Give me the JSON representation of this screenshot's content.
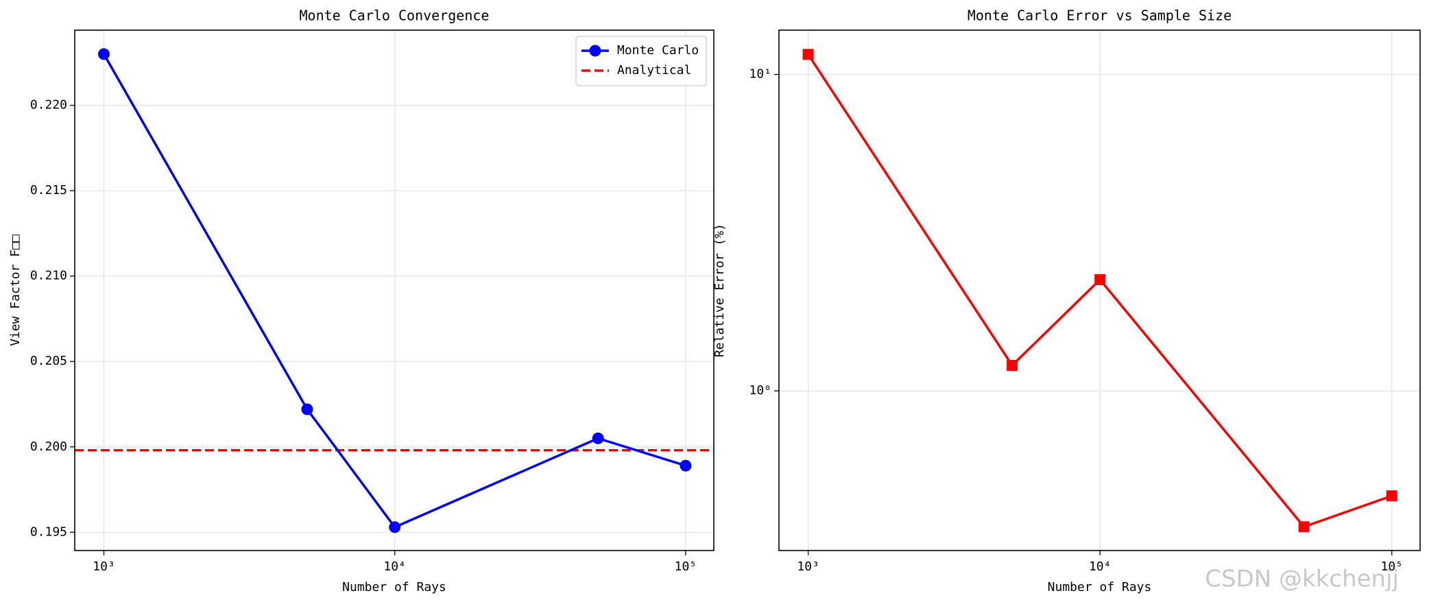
{
  "chart_data": [
    {
      "type": "line",
      "title": "Monte Carlo Convergence",
      "xlabel": "Number of Rays",
      "ylabel": "View Factor F□□",
      "xscale": "log",
      "yscale": "linear",
      "grid": true,
      "legend": "upper right",
      "x": [
        1000,
        5000,
        10000,
        50000,
        100000
      ],
      "series": [
        {
          "name": "Monte Carlo",
          "color": "#0000ff",
          "marker": "circle",
          "values": [
            0.223,
            0.2022,
            0.1953,
            0.2005,
            0.1989
          ]
        }
      ],
      "reference_lines": [
        {
          "name": "Analytical",
          "color": "#ff0000",
          "style": "dashed",
          "value": 0.1998
        }
      ],
      "xlim": [
        794,
        125000
      ],
      "xticks": [
        {
          "value": 1000,
          "label": "10³"
        },
        {
          "value": 10000,
          "label": "10⁴"
        },
        {
          "value": 100000,
          "label": "10⁵"
        }
      ],
      "ylim": [
        0.19393,
        0.2244
      ],
      "yticks": [
        {
          "value": 0.195,
          "label": "0.195"
        },
        {
          "value": 0.2,
          "label": "0.200"
        },
        {
          "value": 0.205,
          "label": "0.205"
        },
        {
          "value": 0.21,
          "label": "0.210"
        },
        {
          "value": 0.215,
          "label": "0.215"
        },
        {
          "value": 0.22,
          "label": "0.220"
        }
      ]
    },
    {
      "type": "line",
      "title": "Monte Carlo Error vs Sample Size",
      "xlabel": "Number of Rays",
      "ylabel": "Relative Error (%)",
      "xscale": "log",
      "yscale": "log",
      "grid": true,
      "x": [
        1000,
        5000,
        10000,
        50000,
        100000
      ],
      "series": [
        {
          "color": "#ff0000",
          "marker": "square",
          "values": [
            11.57,
            1.204,
            2.247,
            0.372,
            0.466
          ]
        }
      ],
      "xlim": [
        794,
        125000
      ],
      "xticks": [
        {
          "value": 1000,
          "label": "10³"
        },
        {
          "value": 10000,
          "label": "10⁴"
        },
        {
          "value": 100000,
          "label": "10⁵"
        }
      ],
      "ylim": [
        0.313,
        13.8
      ],
      "yticks": [
        {
          "value": 1,
          "label": "10⁰"
        },
        {
          "value": 10,
          "label": "10¹"
        }
      ]
    }
  ],
  "watermark": "CSDN @kkchenjj"
}
